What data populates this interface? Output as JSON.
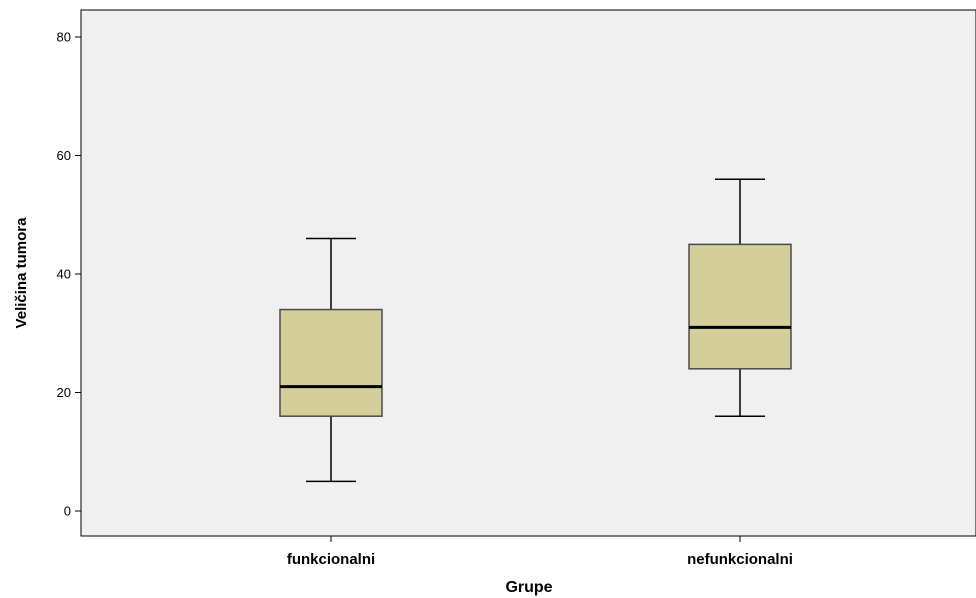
{
  "chart_data": {
    "type": "boxplot",
    "xlabel": "Grupe",
    "ylabel": "Veličina tumora",
    "ylim": [
      -4,
      84
    ],
    "yticks": [
      "0",
      "20",
      "40",
      "60",
      "80"
    ],
    "grid": false,
    "categories": [
      "funkcionalni",
      "nefunkcionalni"
    ],
    "boxes": [
      {
        "category": "funkcionalni",
        "min": 5,
        "q1": 16,
        "median": 21,
        "q3": 34,
        "max": 46
      },
      {
        "category": "nefunkcionalni",
        "min": 16,
        "q1": 24,
        "median": 31,
        "q3": 45,
        "max": 56
      }
    ],
    "colors": {
      "plot_background": "#f0f0f0",
      "box_fill": "#d3ce9a",
      "box_stroke": "#4a4a4a",
      "median": "#000000",
      "whisker": "#000000"
    }
  }
}
